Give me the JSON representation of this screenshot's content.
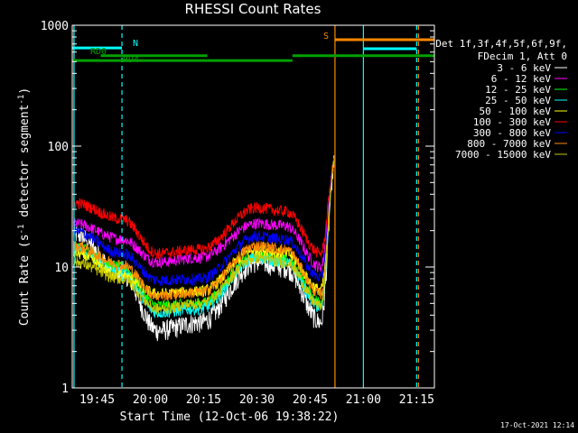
{
  "chart_data": {
    "type": "line",
    "title": "RHESSI Count Rates",
    "xlabel": "Start Time (12-Oct-06 19:38:22)",
    "ylabel_parts": [
      "Count Rate (s",
      "-1",
      " detector segment",
      "-1",
      ")"
    ],
    "yscale": "log",
    "ylim": [
      1,
      1000
    ],
    "y_ticks": [
      1,
      10,
      100,
      1000
    ],
    "y_tick_labels": [
      "1",
      "10",
      "100",
      "1000"
    ],
    "x_range_minutes": [
      "19:38",
      "21:20"
    ],
    "x_ticks": [
      "19:45",
      "20:00",
      "20:15",
      "20:30",
      "20:45",
      "21:00",
      "21:15"
    ],
    "grid": false,
    "legend_position": "right",
    "legend_header": [
      "Det 1f,3f,4f,5f,6f,9f,",
      "FDecim 1, Att 0"
    ],
    "background": "#000000",
    "foreground": "#ffffff",
    "series": [
      {
        "name": "3 - 6 keV",
        "color": "#ffffff",
        "key": [
          19.0,
          9.0,
          3.0,
          3.5,
          11.0,
          10.0,
          3.5,
          75.0
        ]
      },
      {
        "name": "6 - 12 keV",
        "color": "#ff00ff",
        "key": [
          23.0,
          17.0,
          11.0,
          12.0,
          23.0,
          22.0,
          10.0,
          75.0
        ]
      },
      {
        "name": "12 - 25 keV",
        "color": "#00ff00",
        "key": [
          15.0,
          10.0,
          4.8,
          5.0,
          12.5,
          11.5,
          5.2,
          75.0
        ]
      },
      {
        "name": "25 - 50 keV",
        "color": "#00ffff",
        "key": [
          14.0,
          9.0,
          4.2,
          4.5,
          12.0,
          11.0,
          4.6,
          75.0
        ]
      },
      {
        "name": "50 - 100 keV",
        "color": "#ffff00",
        "key": [
          13.0,
          8.5,
          6.0,
          6.3,
          14.0,
          13.0,
          6.5,
          75.0
        ]
      },
      {
        "name": "100 - 300 keV",
        "color": "#ff0000",
        "key": [
          34.0,
          25.0,
          13.0,
          14.0,
          31.0,
          29.0,
          13.0,
          75.0
        ]
      },
      {
        "name": "300 - 800 keV",
        "color": "#0000ff",
        "key": [
          20.0,
          13.0,
          7.8,
          8.0,
          18.0,
          17.0,
          8.2,
          75.0
        ]
      },
      {
        "name": "800 - 7000 keV",
        "color": "#ff8800",
        "key": [
          15.0,
          10.5,
          5.8,
          6.2,
          15.0,
          14.0,
          6.0,
          75.0
        ]
      },
      {
        "name": "7000 - 15000 keV",
        "color": "#c8c800",
        "key": [
          11.0,
          8.0,
          4.5,
          5.0,
          12.0,
          11.0,
          4.8,
          75.0
        ]
      }
    ],
    "series_key_times": [
      "19:38:22",
      "19:52",
      "20:02",
      "20:14",
      "20:30",
      "20:38",
      "20:48",
      "20:52"
    ],
    "annotations": [
      {
        "label": "RD0",
        "color": "#00a000"
      },
      {
        "label": "RD4",
        "color": "#00a000"
      },
      {
        "label": "N",
        "color": "#00ffff"
      },
      {
        "label": "S",
        "color": "#ff8800"
      }
    ],
    "bars": [
      {
        "label": "SAA / night",
        "color": "#00ffff",
        "from": "19:38",
        "to": "19:52",
        "level": 650
      },
      {
        "label": "decimation",
        "color": "#00a000",
        "from": "19:38",
        "to": "20:16",
        "level": 510
      },
      {
        "label": "decimation",
        "color": "#00a000",
        "from": "19:46",
        "to": "20:16",
        "level": 560
      },
      {
        "label": "decimation",
        "color": "#00a000",
        "from": "20:16",
        "to": "20:40",
        "level": 510
      },
      {
        "label": "decimation",
        "color": "#00a000",
        "from": "20:40",
        "to": "21:20",
        "level": 560
      },
      {
        "label": "SAA",
        "color": "#ff8800",
        "from": "20:52",
        "to": "21:20",
        "level": 760
      },
      {
        "label": "night",
        "color": "#00ffff",
        "from": "21:00",
        "to": "21:15",
        "level": 640
      }
    ],
    "vertical_markers": [
      {
        "time": "19:38:30",
        "color": "#00ffff",
        "style": "solid"
      },
      {
        "time": "19:52",
        "color": "#00ffff",
        "style": "dashed"
      },
      {
        "time": "20:52",
        "color": "#ff8800",
        "style": "solid"
      },
      {
        "time": "21:00",
        "color": "#00ffff",
        "style": "solid"
      },
      {
        "time": "21:15",
        "color": "#00ffff",
        "style": "dashed"
      },
      {
        "time": "21:15:30",
        "color": "#ff8800",
        "style": "dashed"
      }
    ],
    "timestamp": "17-Oct-2021 12:14"
  }
}
